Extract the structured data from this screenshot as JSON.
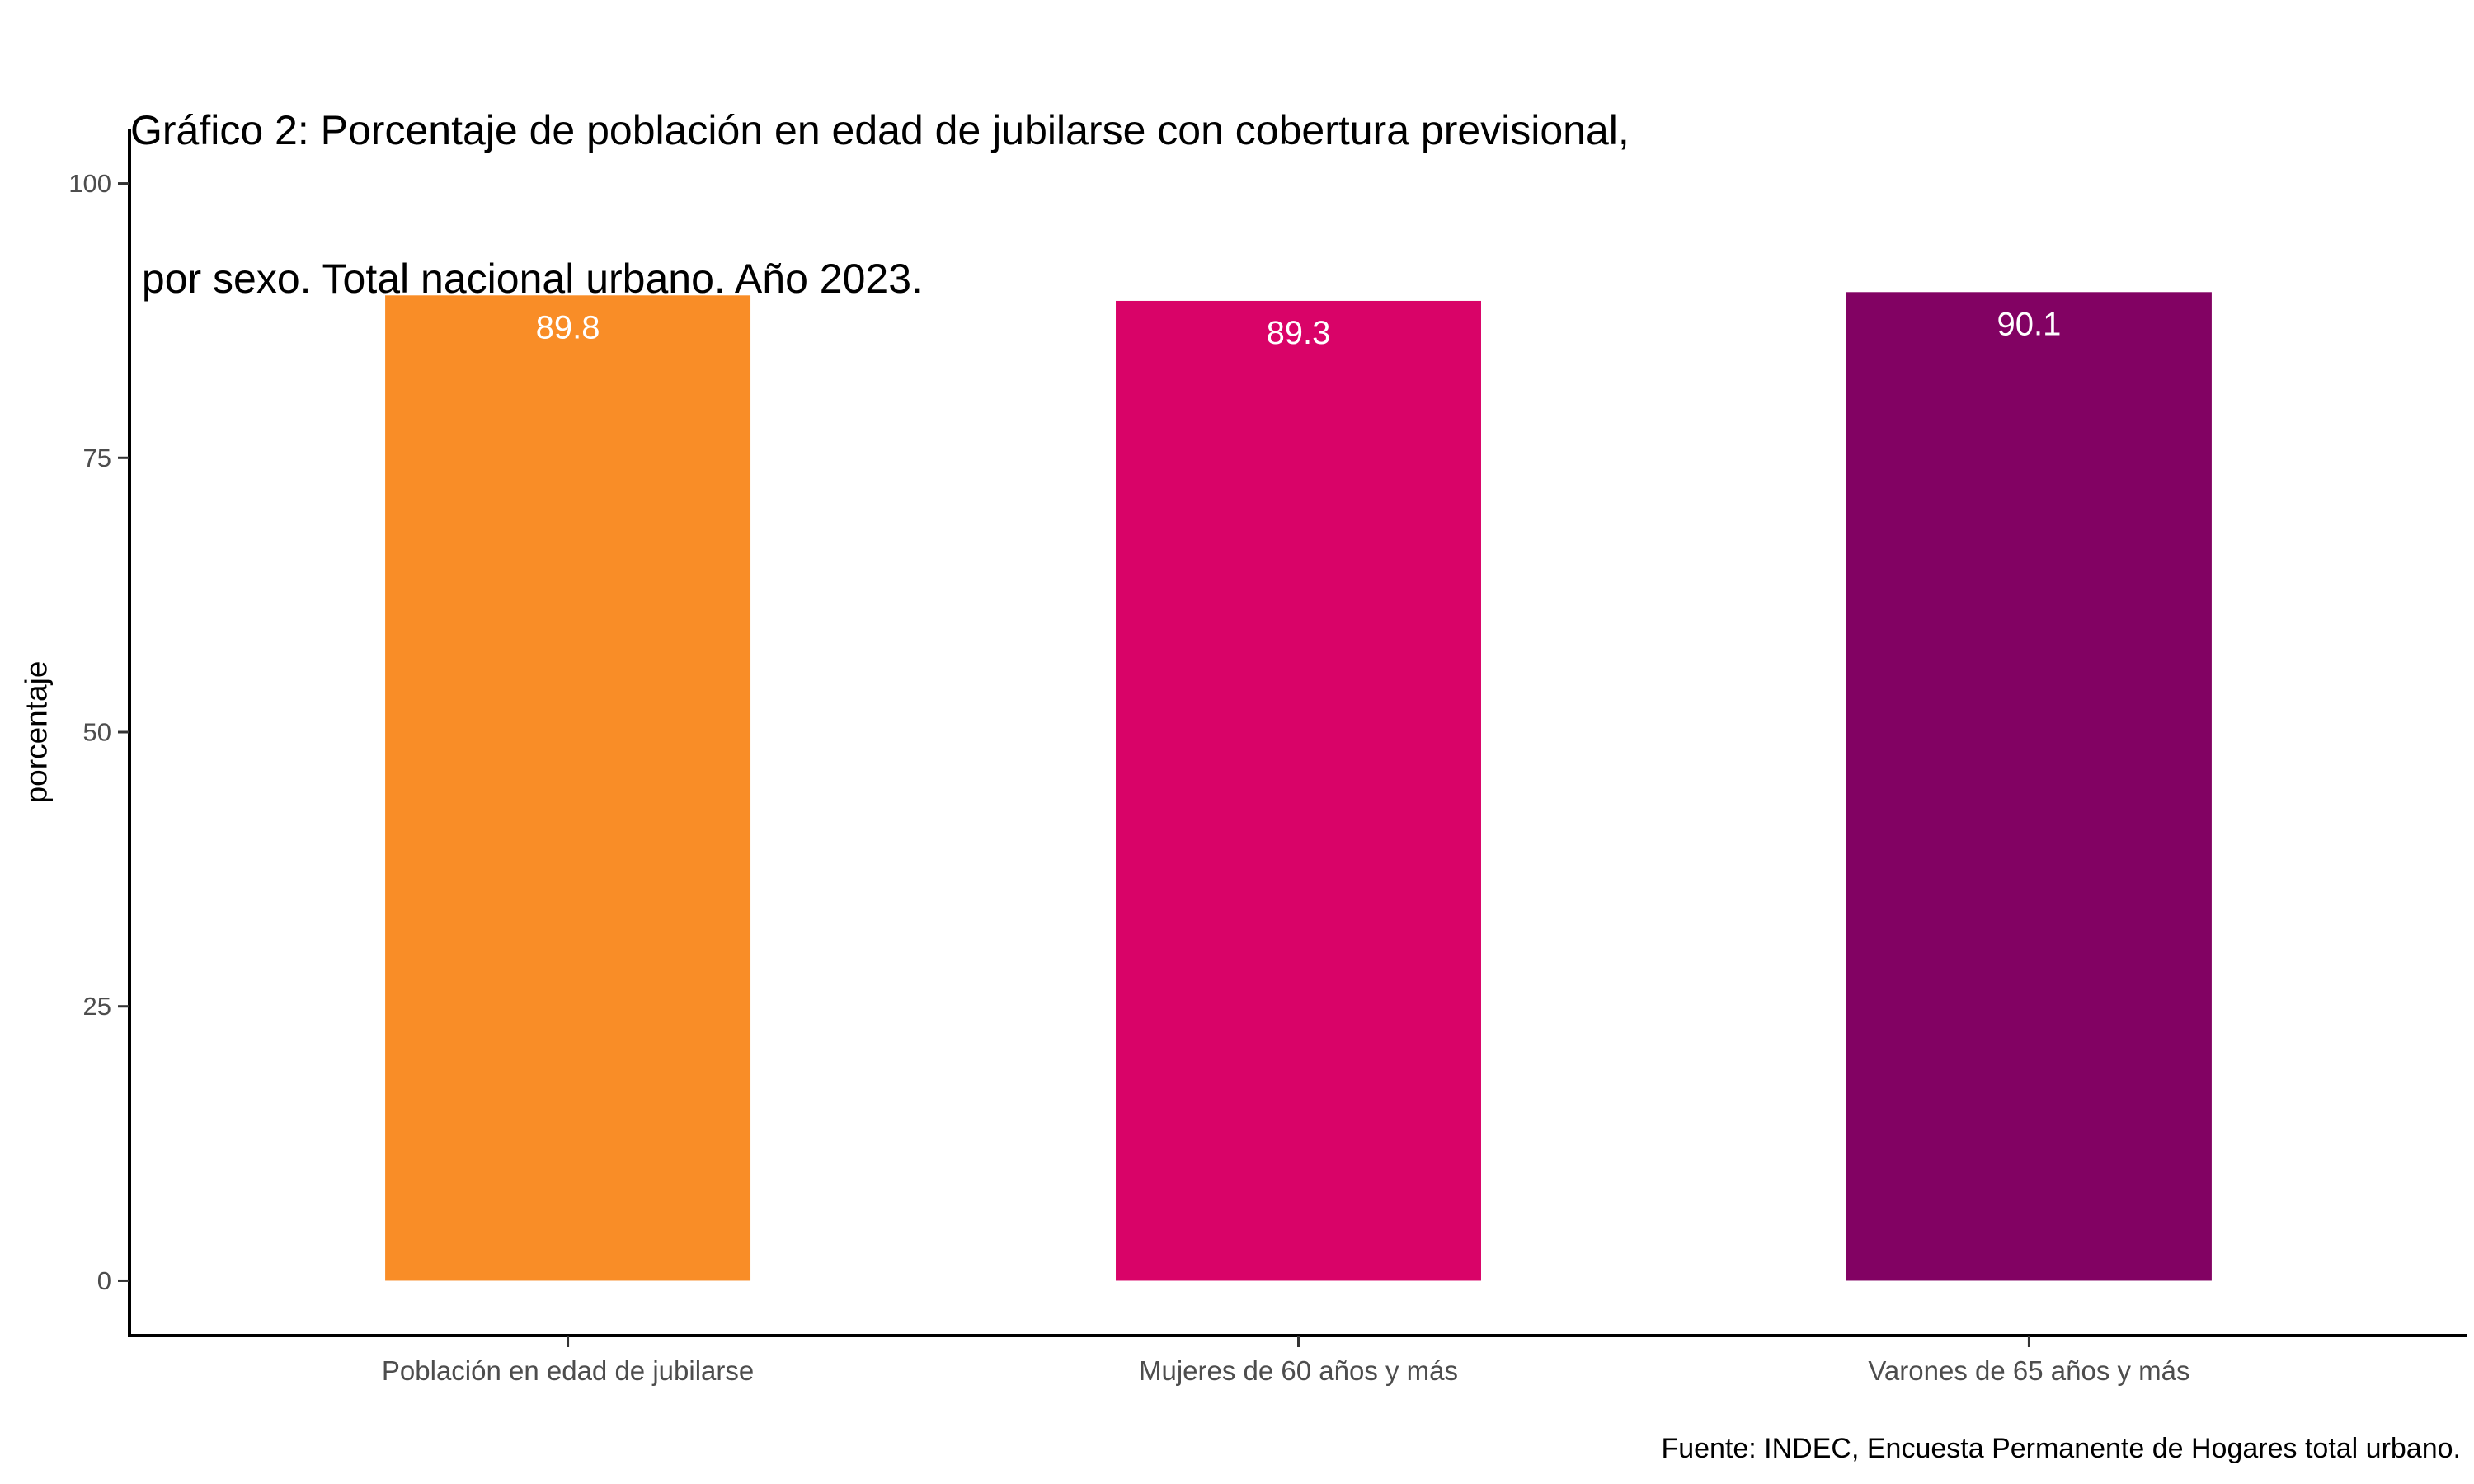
{
  "chart_data": {
    "type": "bar",
    "title_lines": [
      "Gráfico 2: Porcentaje de población en edad de jubilarse con cobertura previsional,",
      " por sexo. Total nacional urbano. Año 2023."
    ],
    "xlabel": "",
    "ylabel": "porcentaje",
    "ylim": [
      -5,
      105
    ],
    "yticks": [
      0,
      25,
      50,
      75,
      100
    ],
    "ytick_labels": [
      "0",
      "25",
      "50",
      "75",
      "100"
    ],
    "categories": [
      "Población en edad de jubilarse",
      "Mujeres de 60 años y más",
      "Varones de 65 años y más"
    ],
    "values": [
      89.8,
      89.3,
      90.1
    ],
    "value_labels": [
      "89.8",
      "89.3",
      "90.1"
    ],
    "colors": [
      "#F98D27",
      "#D90368",
      "#820263"
    ],
    "grid": false,
    "legend": "none",
    "source": "Fuente: INDEC, Encuesta Permanente de Hogares total urbano."
  }
}
